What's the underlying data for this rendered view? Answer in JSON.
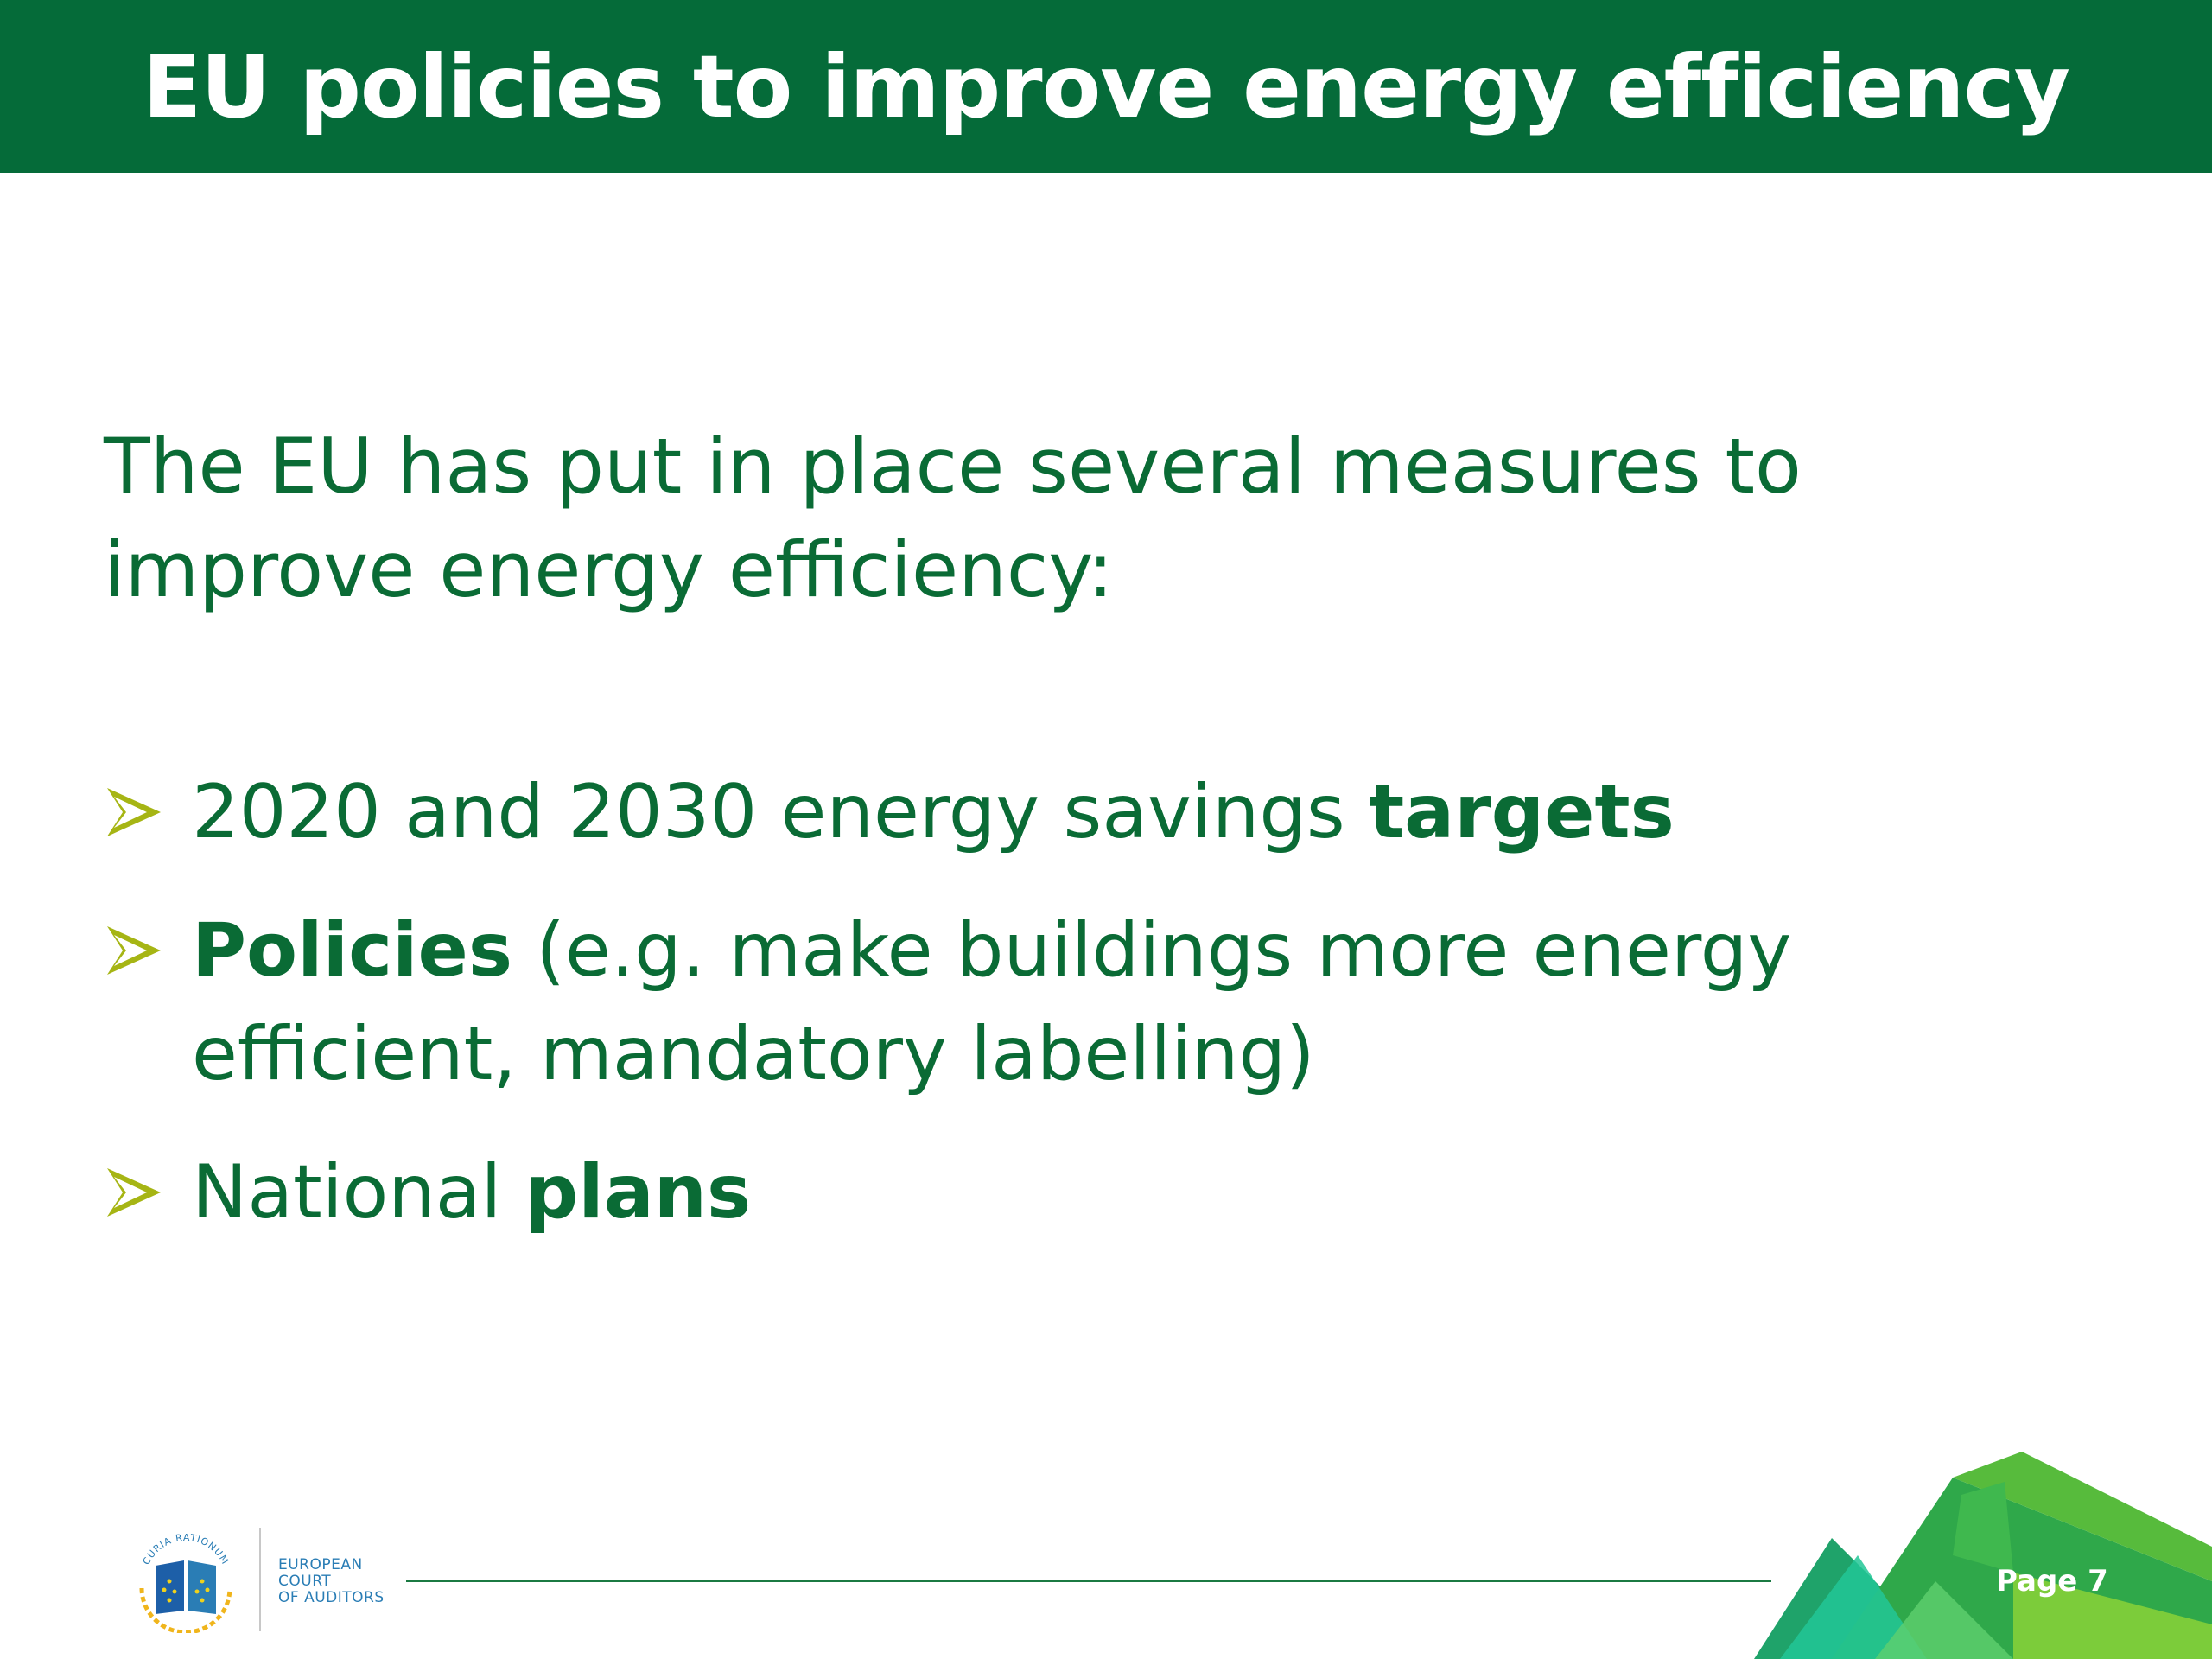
{
  "header": {
    "title": "EU policies to improve energy efficiency"
  },
  "intro_text": "The EU has put in place several measures to improve energy efficiency:",
  "bullets": [
    {
      "before": "2020 and 2030 energy savings ",
      "bold": "targets",
      "after": ""
    },
    {
      "before": "",
      "bold": "Policies",
      "after": " (e.g. make buildings more energy efficient, mandatory labelling)"
    },
    {
      "before": "National ",
      "bold": "plans",
      "after": ""
    }
  ],
  "footer": {
    "logo_motto": "CURIA RATIONUM",
    "org_lines": [
      "EUROPEAN",
      "COURT",
      "OF AUDITORS"
    ],
    "page_label": "Page 7"
  },
  "colors": {
    "header_bg": "#056b39",
    "text_green": "#0a6b35",
    "bullet_arrow": "#a6b514",
    "org_blue": "#2a7db5"
  },
  "icons": {
    "bullet": "arrow-bullet-icon",
    "logo": "eca-logo-icon"
  }
}
